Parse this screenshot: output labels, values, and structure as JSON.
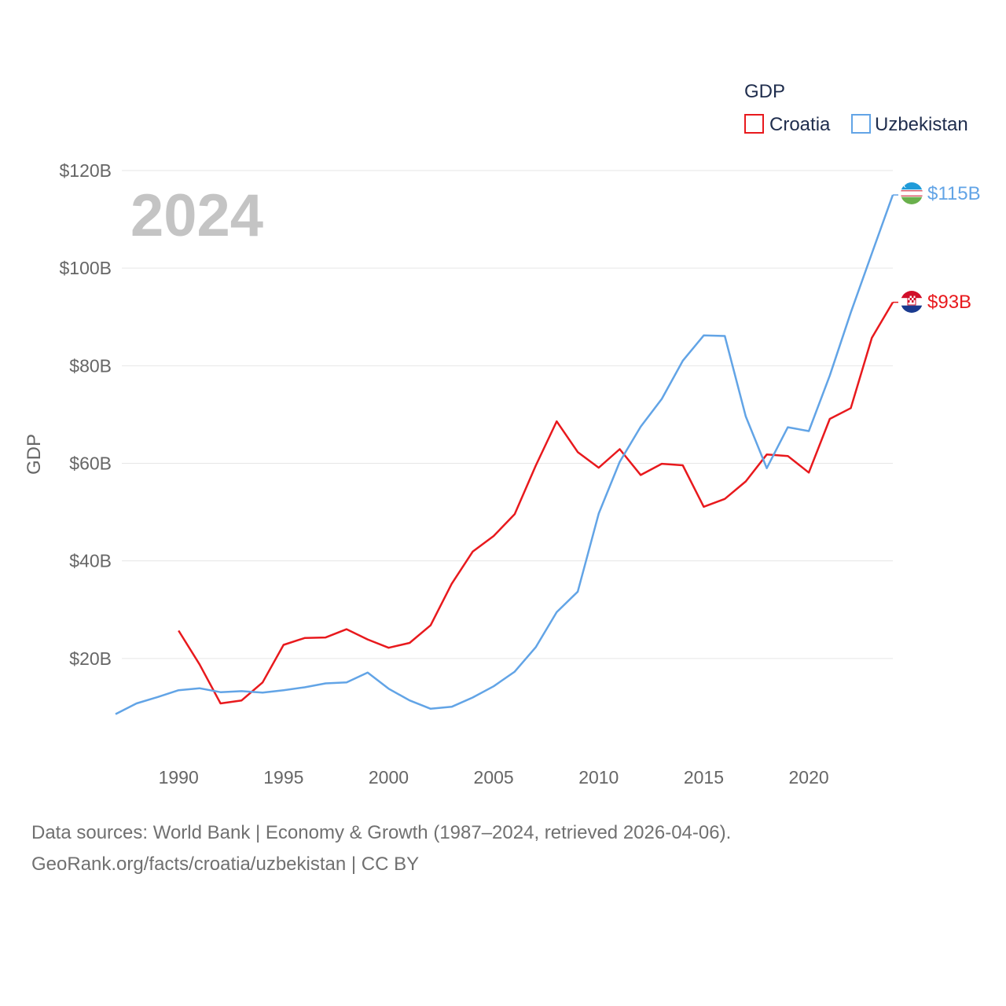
{
  "chart_data": {
    "type": "line",
    "ylabel": "GDP",
    "year_label": "2024",
    "legend": {
      "title": "GDP",
      "position": "top-right"
    },
    "x_ticks": [
      1990,
      1995,
      2000,
      2005,
      2010,
      2015,
      2020
    ],
    "y_ticks": [
      {
        "value": 20,
        "label": "$20B"
      },
      {
        "value": 40,
        "label": "$40B"
      },
      {
        "value": 60,
        "label": "$60B"
      },
      {
        "value": 80,
        "label": "$80B"
      },
      {
        "value": 100,
        "label": "$100B"
      },
      {
        "value": 120,
        "label": "$120B"
      }
    ],
    "xlim": [
      1987,
      2024
    ],
    "ylim": [
      0,
      120
    ],
    "grid": true,
    "series": [
      {
        "name": "Croatia",
        "color": "#e8191d",
        "end_label": "$93B",
        "x": [
          1990,
          1991,
          1992,
          1993,
          1994,
          1995,
          1996,
          1997,
          1998,
          1999,
          2000,
          2001,
          2002,
          2003,
          2004,
          2005,
          2006,
          2007,
          2008,
          2009,
          2010,
          2011,
          2012,
          2013,
          2014,
          2015,
          2016,
          2017,
          2018,
          2019,
          2020,
          2021,
          2022,
          2023,
          2024
        ],
        "values": [
          25.7,
          18.8,
          10.8,
          11.4,
          15.1,
          22.8,
          24.2,
          24.3,
          26.0,
          23.9,
          22.2,
          23.2,
          26.8,
          35.3,
          41.9,
          45.1,
          49.6,
          59.5,
          68.6,
          62.3,
          59.1,
          62.9,
          57.6,
          59.9,
          59.6,
          51.1,
          52.7,
          56.3,
          61.8,
          61.5,
          58.1,
          69.1,
          71.3,
          85.7,
          93.0
        ]
      },
      {
        "name": "Uzbekistan",
        "color": "#62a4e6",
        "end_label": "$115B",
        "x": [
          1987,
          1988,
          1989,
          1990,
          1991,
          1992,
          1993,
          1994,
          1995,
          1996,
          1997,
          1998,
          1999,
          2000,
          2001,
          2002,
          2003,
          2004,
          2005,
          2006,
          2007,
          2008,
          2009,
          2010,
          2011,
          2012,
          2013,
          2014,
          2015,
          2016,
          2017,
          2018,
          2019,
          2020,
          2021,
          2022,
          2023,
          2024
        ],
        "values": [
          8.6,
          10.8,
          12.1,
          13.5,
          13.9,
          13.1,
          13.3,
          13.0,
          13.5,
          14.1,
          14.9,
          15.1,
          17.1,
          13.8,
          11.4,
          9.7,
          10.1,
          12.0,
          14.3,
          17.3,
          22.3,
          29.5,
          33.7,
          49.7,
          60.3,
          67.5,
          73.2,
          81.0,
          86.2,
          86.1,
          69.6,
          59.0,
          67.4,
          66.6,
          78.0,
          90.9,
          103.0,
          115.0
        ]
      }
    ]
  },
  "footer": {
    "line1": "Data sources: World Bank | Economy & Growth (1987–2024, retrieved 2026-04-06).",
    "line2": "GeoRank.org/facts/croatia/uzbekistan | CC BY"
  }
}
